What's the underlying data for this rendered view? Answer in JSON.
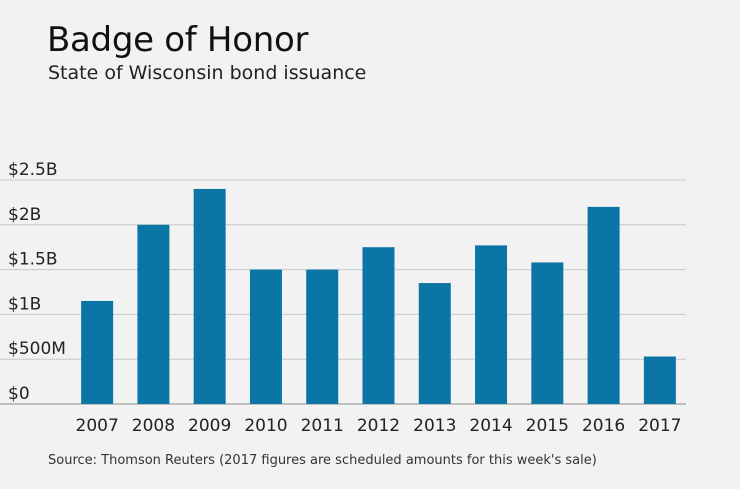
{
  "chart_data": {
    "type": "bar",
    "title": "Badge of Honor",
    "subtitle": "State of Wisconsin bond issuance",
    "source": "Source: Thomson Reuters (2017 figures are scheduled amounts for this week's sale)",
    "xlabel": "",
    "ylabel": "",
    "categories": [
      "2007",
      "2008",
      "2009",
      "2010",
      "2011",
      "2012",
      "2013",
      "2014",
      "2015",
      "2016",
      "2017"
    ],
    "values": [
      1.15,
      2.0,
      2.4,
      1.5,
      1.5,
      1.75,
      1.35,
      1.77,
      1.58,
      2.2,
      0.53
    ],
    "unit": "billions of dollars",
    "ylim": [
      0,
      2.5
    ],
    "yticks": [
      {
        "value": 0,
        "label": "$0"
      },
      {
        "value": 0.5,
        "label": "$500M"
      },
      {
        "value": 1.0,
        "label": "$1B"
      },
      {
        "value": 1.5,
        "label": "$1.5B"
      },
      {
        "value": 2.0,
        "label": "$2B"
      },
      {
        "value": 2.5,
        "label": "$2.5B"
      }
    ],
    "grid": true,
    "bar_color": "#0b76a6",
    "grid_color": "#c6c9c8",
    "axis_color": "#8a8d8c"
  }
}
